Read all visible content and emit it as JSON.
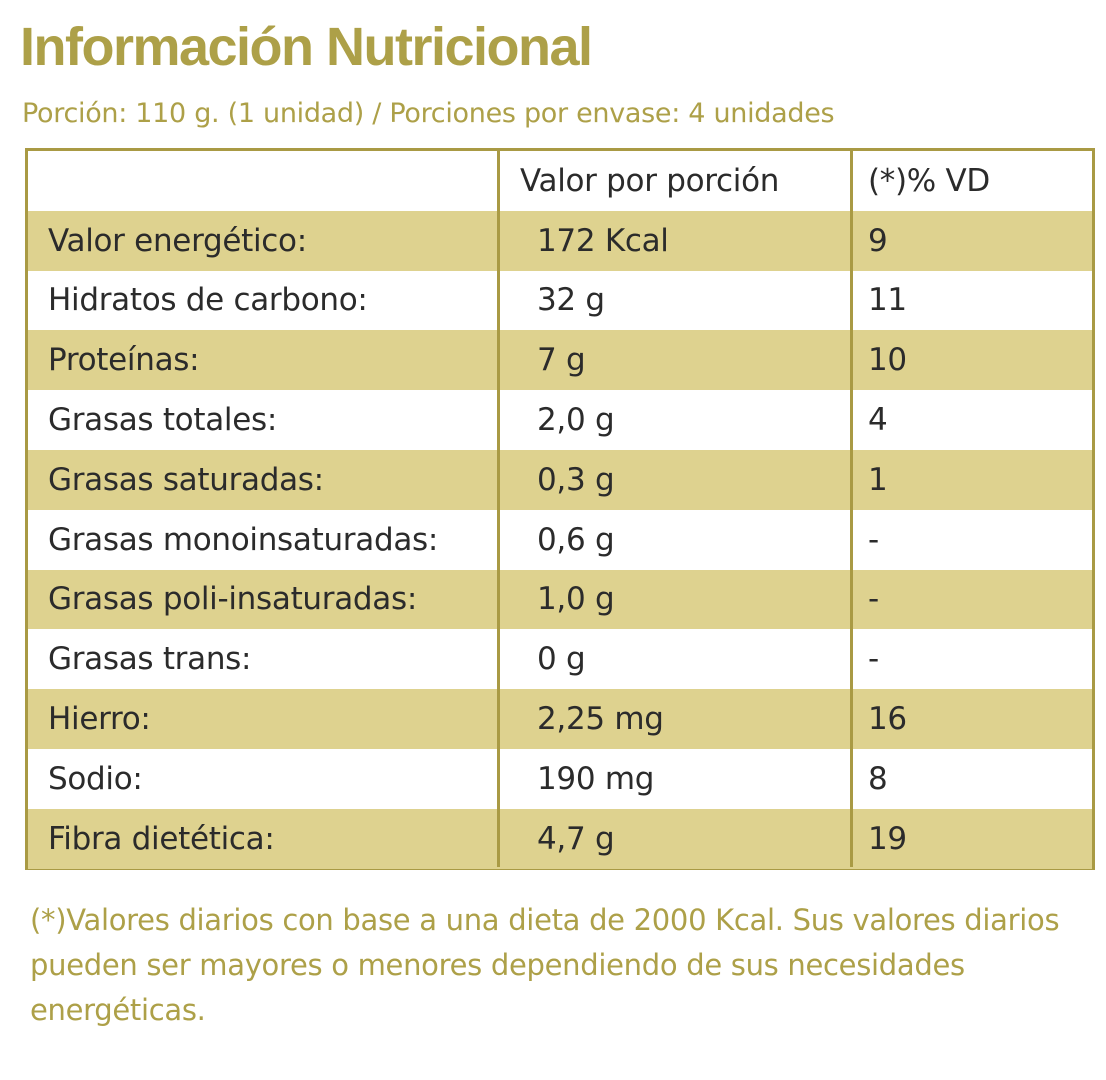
{
  "title": "Información Nutricional",
  "subtitle": "Porción: 110 g. (1 unidad) / Porciones por envase: 4 unidades",
  "colors": {
    "accent": "#ada048",
    "border": "#a99a44",
    "row_shade": "#ded28f",
    "text": "#2b2b2b"
  },
  "table": {
    "headers": [
      "",
      "Valor por porción",
      "(*)% VD"
    ],
    "rows": [
      {
        "name": "Valor energético:",
        "value": "172 Kcal",
        "vd": "9"
      },
      {
        "name": "Hidratos de carbono:",
        "value": "32 g",
        "vd": "11"
      },
      {
        "name": "Proteínas:",
        "value": "7 g",
        "vd": "10"
      },
      {
        "name": "Grasas totales:",
        "value": "2,0 g",
        "vd": "4"
      },
      {
        "name": "Grasas saturadas:",
        "value": "0,3 g",
        "vd": "1"
      },
      {
        "name": "Grasas monoinsaturadas:",
        "value": "0,6 g",
        "vd": "-"
      },
      {
        "name": "Grasas poli-insaturadas:",
        "value": "1,0 g",
        "vd": "-"
      },
      {
        "name": "Grasas trans:",
        "value": "0 g",
        "vd": "-"
      },
      {
        "name": "Hierro:",
        "value": "2,25 mg",
        "vd": "16"
      },
      {
        "name": "Sodio:",
        "value": "190 mg",
        "vd": "8"
      },
      {
        "name": "Fibra dietética:",
        "value": "4,7 g",
        "vd": "19"
      }
    ]
  },
  "footnote": "(*)Valores diarios con base a una dieta de 2000 Kcal. Sus valores diarios pueden ser mayores o menores dependiendo de sus necesidades energéticas."
}
